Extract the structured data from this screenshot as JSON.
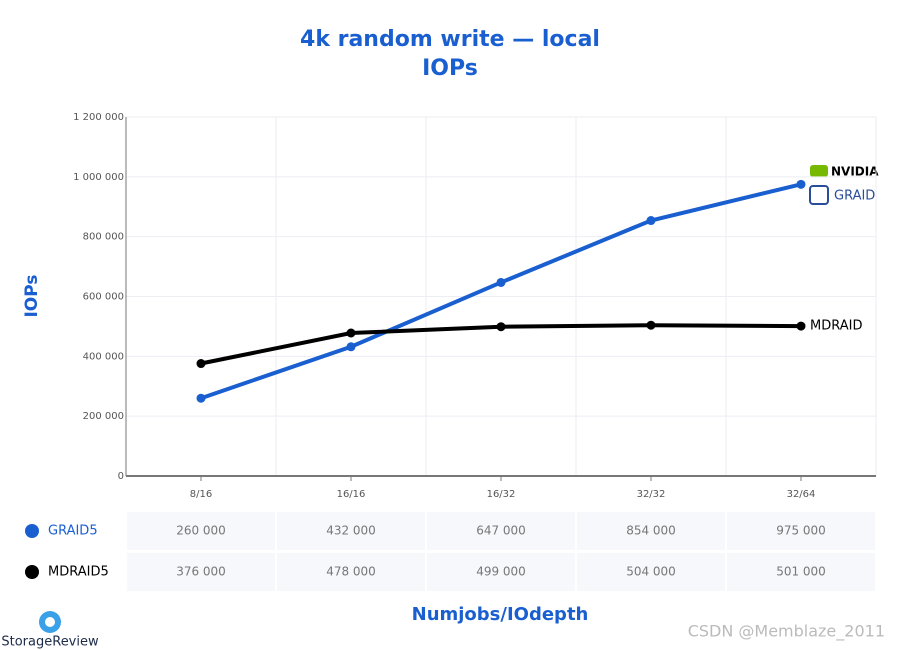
{
  "chart_data": {
    "type": "line",
    "title": "4k random write — local",
    "subtitle": "IOPs",
    "y_label": "IOPs",
    "x_label": "Numjobs/IOdepth",
    "categories": [
      "8/16",
      "16/16",
      "16/32",
      "32/32",
      "32/64"
    ],
    "series": [
      {
        "name": "GRAID5",
        "color": "#1a5fd0",
        "values": [
          260000,
          432000,
          647000,
          854000,
          975000
        ],
        "value_labels": [
          "260 000",
          "432 000",
          "647 000",
          "854 000",
          "975 000"
        ]
      },
      {
        "name": "MDRAID5",
        "color": "#000000",
        "values": [
          376000,
          478000,
          499000,
          504000,
          501000
        ],
        "value_labels": [
          "376 000",
          "478 000",
          "499 000",
          "504 000",
          "501 000"
        ]
      }
    ],
    "end_label": "MDRAID",
    "logos": [
      "NVIDIA",
      "GRAID",
      "StorageReview"
    ],
    "watermark": "CSDN @Memblaze_2011",
    "ylim": [
      0,
      1200000
    ],
    "yticks": [
      0,
      {
        "value": 200000,
        "label": "200 000"
      },
      {
        "value": 400000,
        "label": "400 000"
      },
      {
        "value": 600000,
        "label": "600 000"
      },
      {
        "value": 800000,
        "label": "800 000"
      },
      {
        "value": 1000000,
        "label": "1 000 000"
      },
      {
        "value": 1200000,
        "label": "1 200 000"
      }
    ],
    "grid": true
  }
}
